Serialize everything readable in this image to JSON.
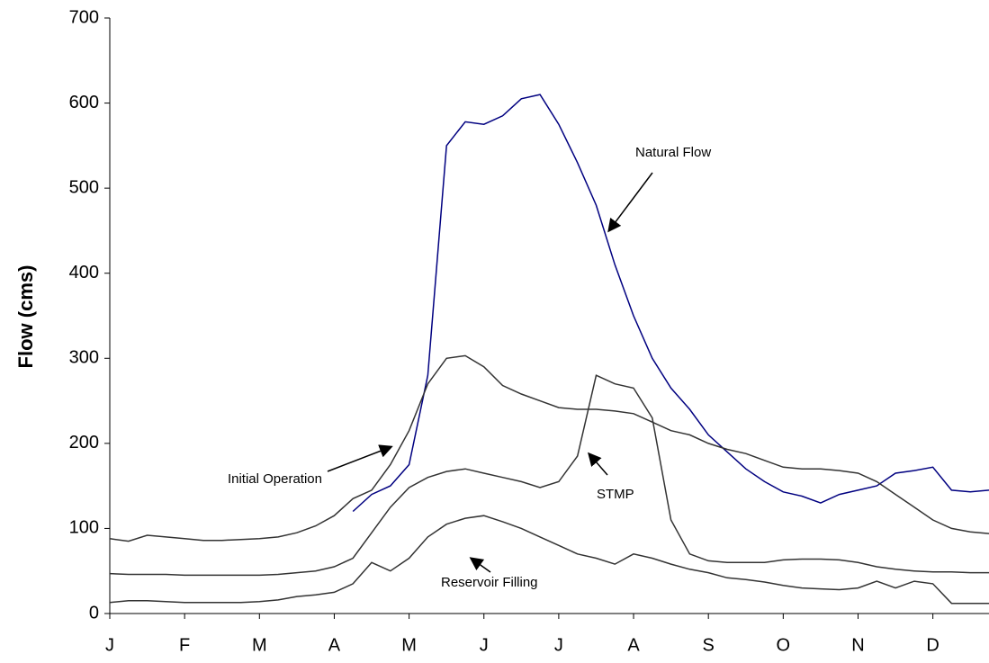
{
  "chart_data": {
    "type": "line",
    "y_label": "Flow (cms)",
    "categories": [
      "J",
      null,
      null,
      null,
      "F",
      null,
      null,
      null,
      "M",
      null,
      null,
      null,
      "A",
      null,
      null,
      null,
      "M",
      null,
      null,
      null,
      "J",
      null,
      null,
      null,
      "J",
      null,
      null,
      null,
      "A",
      null,
      null,
      null,
      "S",
      null,
      null,
      null,
      "O",
      null,
      null,
      null,
      "N",
      null,
      null,
      null,
      "D",
      null,
      null,
      null
    ],
    "series": [
      {
        "name": "Natural Flow",
        "color": "#000080",
        "values": [
          null,
          null,
          null,
          null,
          null,
          null,
          null,
          null,
          null,
          null,
          null,
          null,
          null,
          120,
          140,
          150,
          175,
          280,
          550,
          578,
          575,
          585,
          605,
          610,
          575,
          530,
          480,
          410,
          350,
          300,
          265,
          240,
          210,
          190,
          170,
          155,
          143,
          138,
          130,
          140,
          145,
          150,
          165,
          168,
          172,
          145,
          143,
          145
        ]
      },
      {
        "name": "Initial Operation",
        "color": "#333333",
        "values": [
          88,
          85,
          92,
          90,
          88,
          86,
          86,
          87,
          88,
          90,
          95,
          103,
          115,
          135,
          145,
          175,
          215,
          270,
          300,
          303,
          290,
          268,
          258,
          250,
          242,
          240,
          240,
          238,
          235,
          225,
          215,
          210,
          200,
          193,
          188,
          180,
          172,
          170,
          170,
          168,
          165,
          155,
          140,
          125,
          110,
          100,
          96,
          94
        ]
      },
      {
        "name": "STMP",
        "color": "#333333",
        "values": [
          47,
          46,
          46,
          46,
          45,
          45,
          45,
          45,
          45,
          46,
          48,
          50,
          55,
          65,
          95,
          125,
          148,
          160,
          167,
          170,
          165,
          160,
          155,
          148,
          155,
          185,
          280,
          270,
          265,
          230,
          110,
          70,
          62,
          60,
          60,
          60,
          63,
          64,
          64,
          63,
          60,
          55,
          52,
          50,
          49,
          49,
          48,
          48
        ]
      },
      {
        "name": "Reservoir Filling",
        "color": "#333333",
        "values": [
          13,
          15,
          15,
          14,
          13,
          13,
          13,
          13,
          14,
          16,
          20,
          22,
          25,
          35,
          60,
          50,
          65,
          90,
          105,
          112,
          115,
          108,
          100,
          90,
          80,
          70,
          65,
          58,
          70,
          65,
          58,
          52,
          48,
          42,
          40,
          37,
          33,
          30,
          29,
          28,
          30,
          38,
          30,
          38,
          35,
          12,
          12,
          12
        ]
      }
    ],
    "ylim": [
      0,
      700
    ],
    "yticks": [
      0,
      100,
      200,
      300,
      400,
      500,
      600,
      700
    ],
    "grid": false
  }
}
